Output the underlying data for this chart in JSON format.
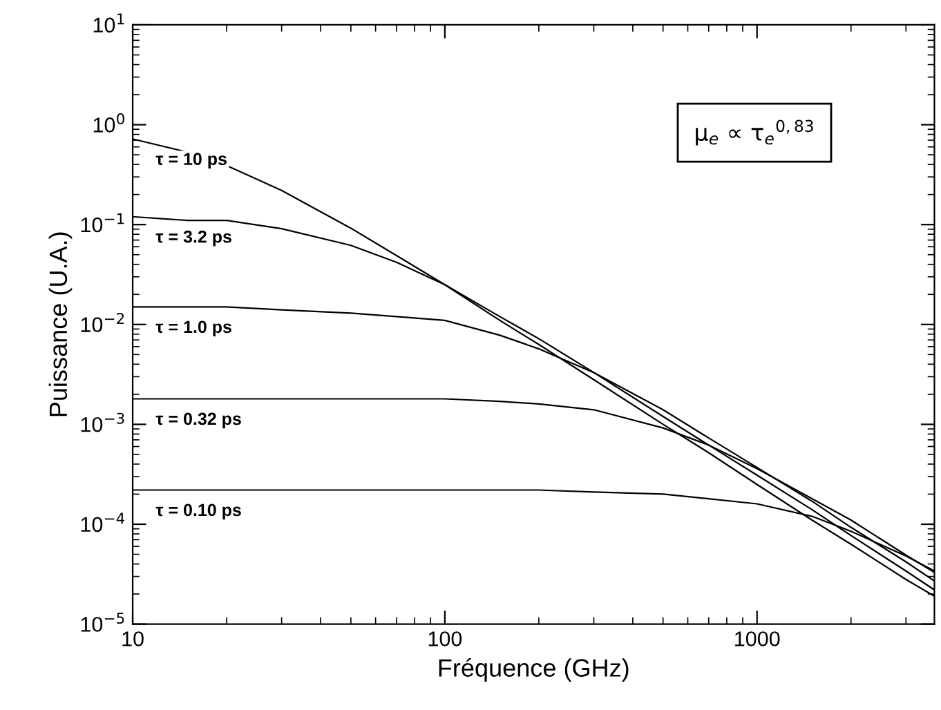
{
  "chart_data": {
    "type": "line",
    "xlabel": "Fréquence (GHz)",
    "ylabel": "Puissance (U.A.)",
    "log": "xy",
    "grid": false,
    "legend": false,
    "marker": "none",
    "line_style": "solid",
    "x": [
      10,
      15,
      20,
      30,
      50,
      70,
      100,
      150,
      200,
      300,
      500,
      700,
      1000,
      1500,
      2000,
      3000,
      3700
    ],
    "xlim": [
      10,
      3700
    ],
    "xticks": [
      10,
      100,
      1000
    ],
    "ylim": [
      1e-05,
      10
    ],
    "yticks": [
      {
        "value": 10,
        "label": "10$^{1}$"
      },
      {
        "value": 1,
        "label": "10$^{0}$"
      },
      {
        "value": 0.1,
        "label": "10$^{−1}$"
      },
      {
        "value": 0.01,
        "label": "10$^{−2}$"
      },
      {
        "value": 0.001,
        "label": "10$^{−3}$"
      },
      {
        "value": 0.0001,
        "label": "10$^{−4}$"
      },
      {
        "value": 1e-05,
        "label": "10$^{−5}$"
      }
    ],
    "series": [
      {
        "name": "τ = 10 ps",
        "color": "#000000",
        "values": [
          0.72,
          0.53,
          0.39,
          0.22,
          0.092,
          0.049,
          0.025,
          0.011,
          0.0063,
          0.0028,
          0.001,
          0.00052,
          0.00025,
          0.00011,
          6.3e-05,
          2.8e-05,
          1.9e-05
        ]
      },
      {
        "name": "τ = 3.2 ps",
        "color": "#000000",
        "values": [
          0.12,
          0.11,
          0.11,
          0.091,
          0.062,
          0.042,
          0.025,
          0.012,
          0.0072,
          0.0033,
          0.0012,
          0.00062,
          0.00031,
          0.00014,
          7.7e-05,
          3.4e-05,
          2.2e-05
        ]
      },
      {
        "name": "τ = 1.0 ps",
        "color": "#000000",
        "values": [
          0.015,
          0.015,
          0.015,
          0.014,
          0.013,
          0.012,
          0.011,
          0.0078,
          0.0057,
          0.0033,
          0.0014,
          0.00073,
          0.00037,
          0.00017,
          9.3e-05,
          4.2e-05,
          2.7e-05
        ]
      },
      {
        "name": "τ = 0.32 ps",
        "color": "#000000",
        "values": [
          0.0018,
          0.0018,
          0.0018,
          0.0018,
          0.0018,
          0.0018,
          0.0018,
          0.0017,
          0.0016,
          0.0014,
          0.00092,
          0.00062,
          0.00036,
          0.00018,
          0.00011,
          4.9e-05,
          3.3e-05
        ]
      },
      {
        "name": "τ = 0.10 ps",
        "color": "#000000",
        "values": [
          0.00022,
          0.00022,
          0.00022,
          0.00022,
          0.00022,
          0.00022,
          0.00022,
          0.00022,
          0.00022,
          0.00021,
          0.0002,
          0.00018,
          0.00016,
          0.00012,
          8.5e-05,
          4.8e-05,
          3.4e-05
        ]
      }
    ],
    "annotations": [
      "μ$_{e}$ ∝ τ$_{e}$$^{0,83}$"
    ]
  }
}
